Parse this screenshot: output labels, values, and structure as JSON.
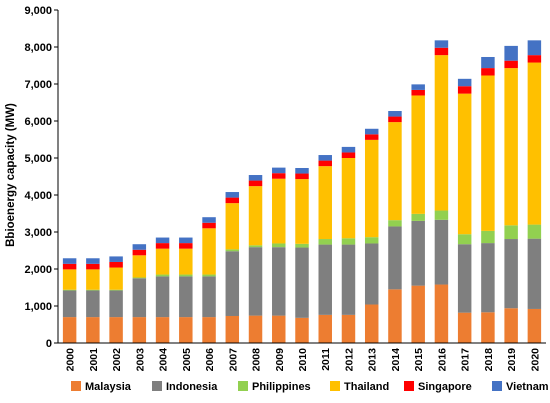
{
  "chart_data": {
    "type": "bar",
    "stacked": true,
    "title": "",
    "xlabel": "",
    "ylabel": "Bbioenergy capacity (MW)",
    "ylim": [
      0,
      9000
    ],
    "yticks": [
      "0",
      "1,000",
      "2,000",
      "3,000",
      "4,000",
      "5,000",
      "6,000",
      "7,000",
      "8,000",
      "9,000"
    ],
    "grid": false,
    "legend_position": "bottom",
    "categories": [
      "2000",
      "2001",
      "2002",
      "2003",
      "2004",
      "2005",
      "2006",
      "2007",
      "2008",
      "2009",
      "2010",
      "2011",
      "2012",
      "2013",
      "2014",
      "2015",
      "2016",
      "2017",
      "2018",
      "2019",
      "2020"
    ],
    "series": [
      {
        "name": "Malaysia",
        "color": "#ED7D31",
        "values": [
          700,
          700,
          700,
          700,
          700,
          700,
          700,
          730,
          740,
          740,
          680,
          760,
          760,
          1040,
          1450,
          1550,
          1580,
          820,
          830,
          940,
          920
        ]
      },
      {
        "name": "Indonesia",
        "color": "#7F7F7F",
        "values": [
          720,
          720,
          720,
          1050,
          1100,
          1100,
          1100,
          1750,
          1850,
          1850,
          1900,
          1900,
          1900,
          1650,
          1700,
          1750,
          1750,
          1850,
          1870,
          1870,
          1900
        ]
      },
      {
        "name": "Philippines",
        "color": "#92D050",
        "values": [
          20,
          20,
          20,
          20,
          50,
          50,
          50,
          50,
          50,
          100,
          100,
          150,
          170,
          170,
          170,
          190,
          250,
          270,
          330,
          370,
          380
        ]
      },
      {
        "name": "Thailand",
        "color": "#FFC000",
        "values": [
          550,
          550,
          600,
          600,
          700,
          700,
          1250,
          1250,
          1600,
          1750,
          1750,
          1970,
          2170,
          2630,
          2650,
          3200,
          4200,
          3800,
          4200,
          4250,
          4380
        ]
      },
      {
        "name": "Singapore",
        "color": "#FF0000",
        "values": [
          150,
          150,
          150,
          150,
          150,
          150,
          150,
          150,
          150,
          150,
          150,
          150,
          150,
          150,
          150,
          150,
          200,
          200,
          200,
          200,
          200
        ]
      },
      {
        "name": "Vietnam",
        "color": "#4472C4",
        "values": [
          150,
          150,
          150,
          150,
          150,
          150,
          150,
          150,
          150,
          150,
          150,
          150,
          150,
          150,
          150,
          150,
          200,
          200,
          300,
          400,
          400
        ]
      }
    ]
  }
}
